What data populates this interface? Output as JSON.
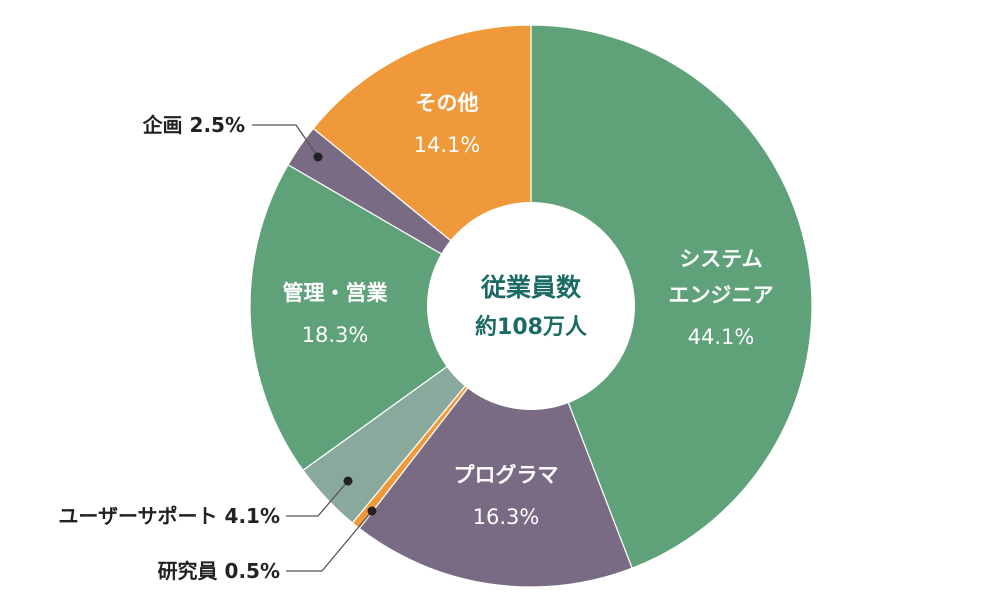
{
  "chart_data": {
    "type": "pie",
    "variant": "donut",
    "center": {
      "title": "従業員数",
      "subtitle": "約108万人"
    },
    "slices": [
      {
        "id": "system-engineer",
        "label_lines": [
          "システム",
          "エンジニア"
        ],
        "value": 44.1,
        "value_label": "44.1%",
        "color": "#5fa27a",
        "label_position": "inside"
      },
      {
        "id": "programmer",
        "label_lines": [
          "プログラマ"
        ],
        "value": 16.3,
        "value_label": "16.3%",
        "color": "#7a6b85",
        "label_position": "inside"
      },
      {
        "id": "researcher",
        "label_lines": [
          "研究員"
        ],
        "value": 0.5,
        "value_label": "0.5%",
        "color": "#f0993a",
        "label_position": "outside-bottom-left"
      },
      {
        "id": "user-support",
        "label_lines": [
          "ユーザーサポート"
        ],
        "value": 4.1,
        "value_label": "4.1%",
        "color": "#8aa99d",
        "label_position": "outside-bottom-left"
      },
      {
        "id": "management-sales",
        "label_lines": [
          "管理・営業"
        ],
        "value": 18.3,
        "value_label": "18.3%",
        "color": "#5fa27a",
        "label_position": "inside"
      },
      {
        "id": "planning",
        "label_lines": [
          "企画"
        ],
        "value": 2.5,
        "value_label": "2.5%",
        "color": "#7a6b85",
        "label_position": "outside-top-left"
      },
      {
        "id": "other",
        "label_lines": [
          "その他"
        ],
        "value": 14.1,
        "value_label": "14.1%",
        "color": "#f0993a",
        "label_position": "inside"
      }
    ],
    "legend": "none",
    "start_angle": "top",
    "direction": "clockwise"
  },
  "colors": {
    "center_text": "#1a6b63",
    "leader_line": "#555555",
    "inside_text": "#ffffff",
    "outside_text": "#222222"
  }
}
